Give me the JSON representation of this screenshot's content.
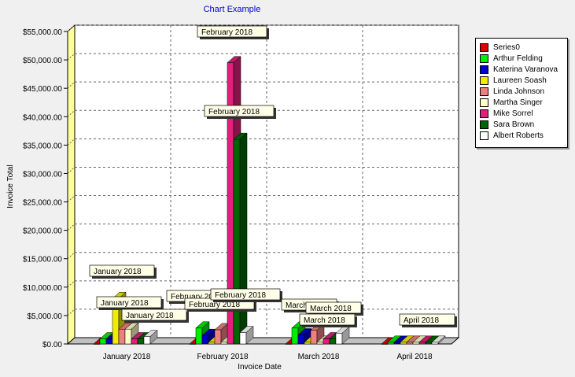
{
  "chart_data": {
    "type": "bar",
    "title": "Chart Example",
    "xlabel": "Invoice Date",
    "ylabel": "Invoice Total",
    "categories": [
      "January 2018",
      "February 2018",
      "March 2018",
      "April 2018"
    ],
    "ylim": [
      0,
      55000
    ],
    "yticks": [
      "$0.00",
      "$5,000.00",
      "$10,000.00",
      "$15,000.00",
      "$20,000.00",
      "$25,000.00",
      "$30,000.00",
      "$35,000.00",
      "$40,000.00",
      "$45,000.00",
      "$50,000.00",
      "$55,000.00"
    ],
    "grid": true,
    "legend_position": "right",
    "series": [
      {
        "name": "Series0",
        "color": "#e00000",
        "values": [
          0,
          0,
          0,
          0
        ]
      },
      {
        "name": "Arthur Felding",
        "color": "#00ee00",
        "values": [
          900,
          2800,
          2800,
          300
        ]
      },
      {
        "name": "Katerina Varanova",
        "color": "#0000cc",
        "values": [
          900,
          1500,
          1600,
          300
        ]
      },
      {
        "name": "Laureen Soash",
        "color": "#eeee00",
        "values": [
          8000,
          300,
          300,
          300
        ]
      },
      {
        "name": "Linda Johnson",
        "color": "#f08080",
        "values": [
          2600,
          2500,
          2400,
          300
        ]
      },
      {
        "name": "Martha Singer",
        "color": "#ffffcc",
        "values": [
          2600,
          300,
          300,
          300
        ]
      },
      {
        "name": "Mike Sorrel",
        "color": "#e0207a",
        "values": [
          900,
          49500,
          900,
          300
        ]
      },
      {
        "name": "Sara Brown",
        "color": "#006600",
        "values": [
          900,
          36000,
          900,
          300
        ]
      },
      {
        "name": "Albert Roberts",
        "color": "#ffffff",
        "values": [
          1300,
          2000,
          1900,
          300
        ]
      }
    ],
    "annotations": [
      "February 2018",
      "February 2018",
      "January 2018",
      "January 2018",
      "January 2018",
      "February 2018",
      "February 2018",
      "February 2018",
      "March 2018",
      "March 2018",
      "March 2018",
      "April 2018"
    ]
  }
}
